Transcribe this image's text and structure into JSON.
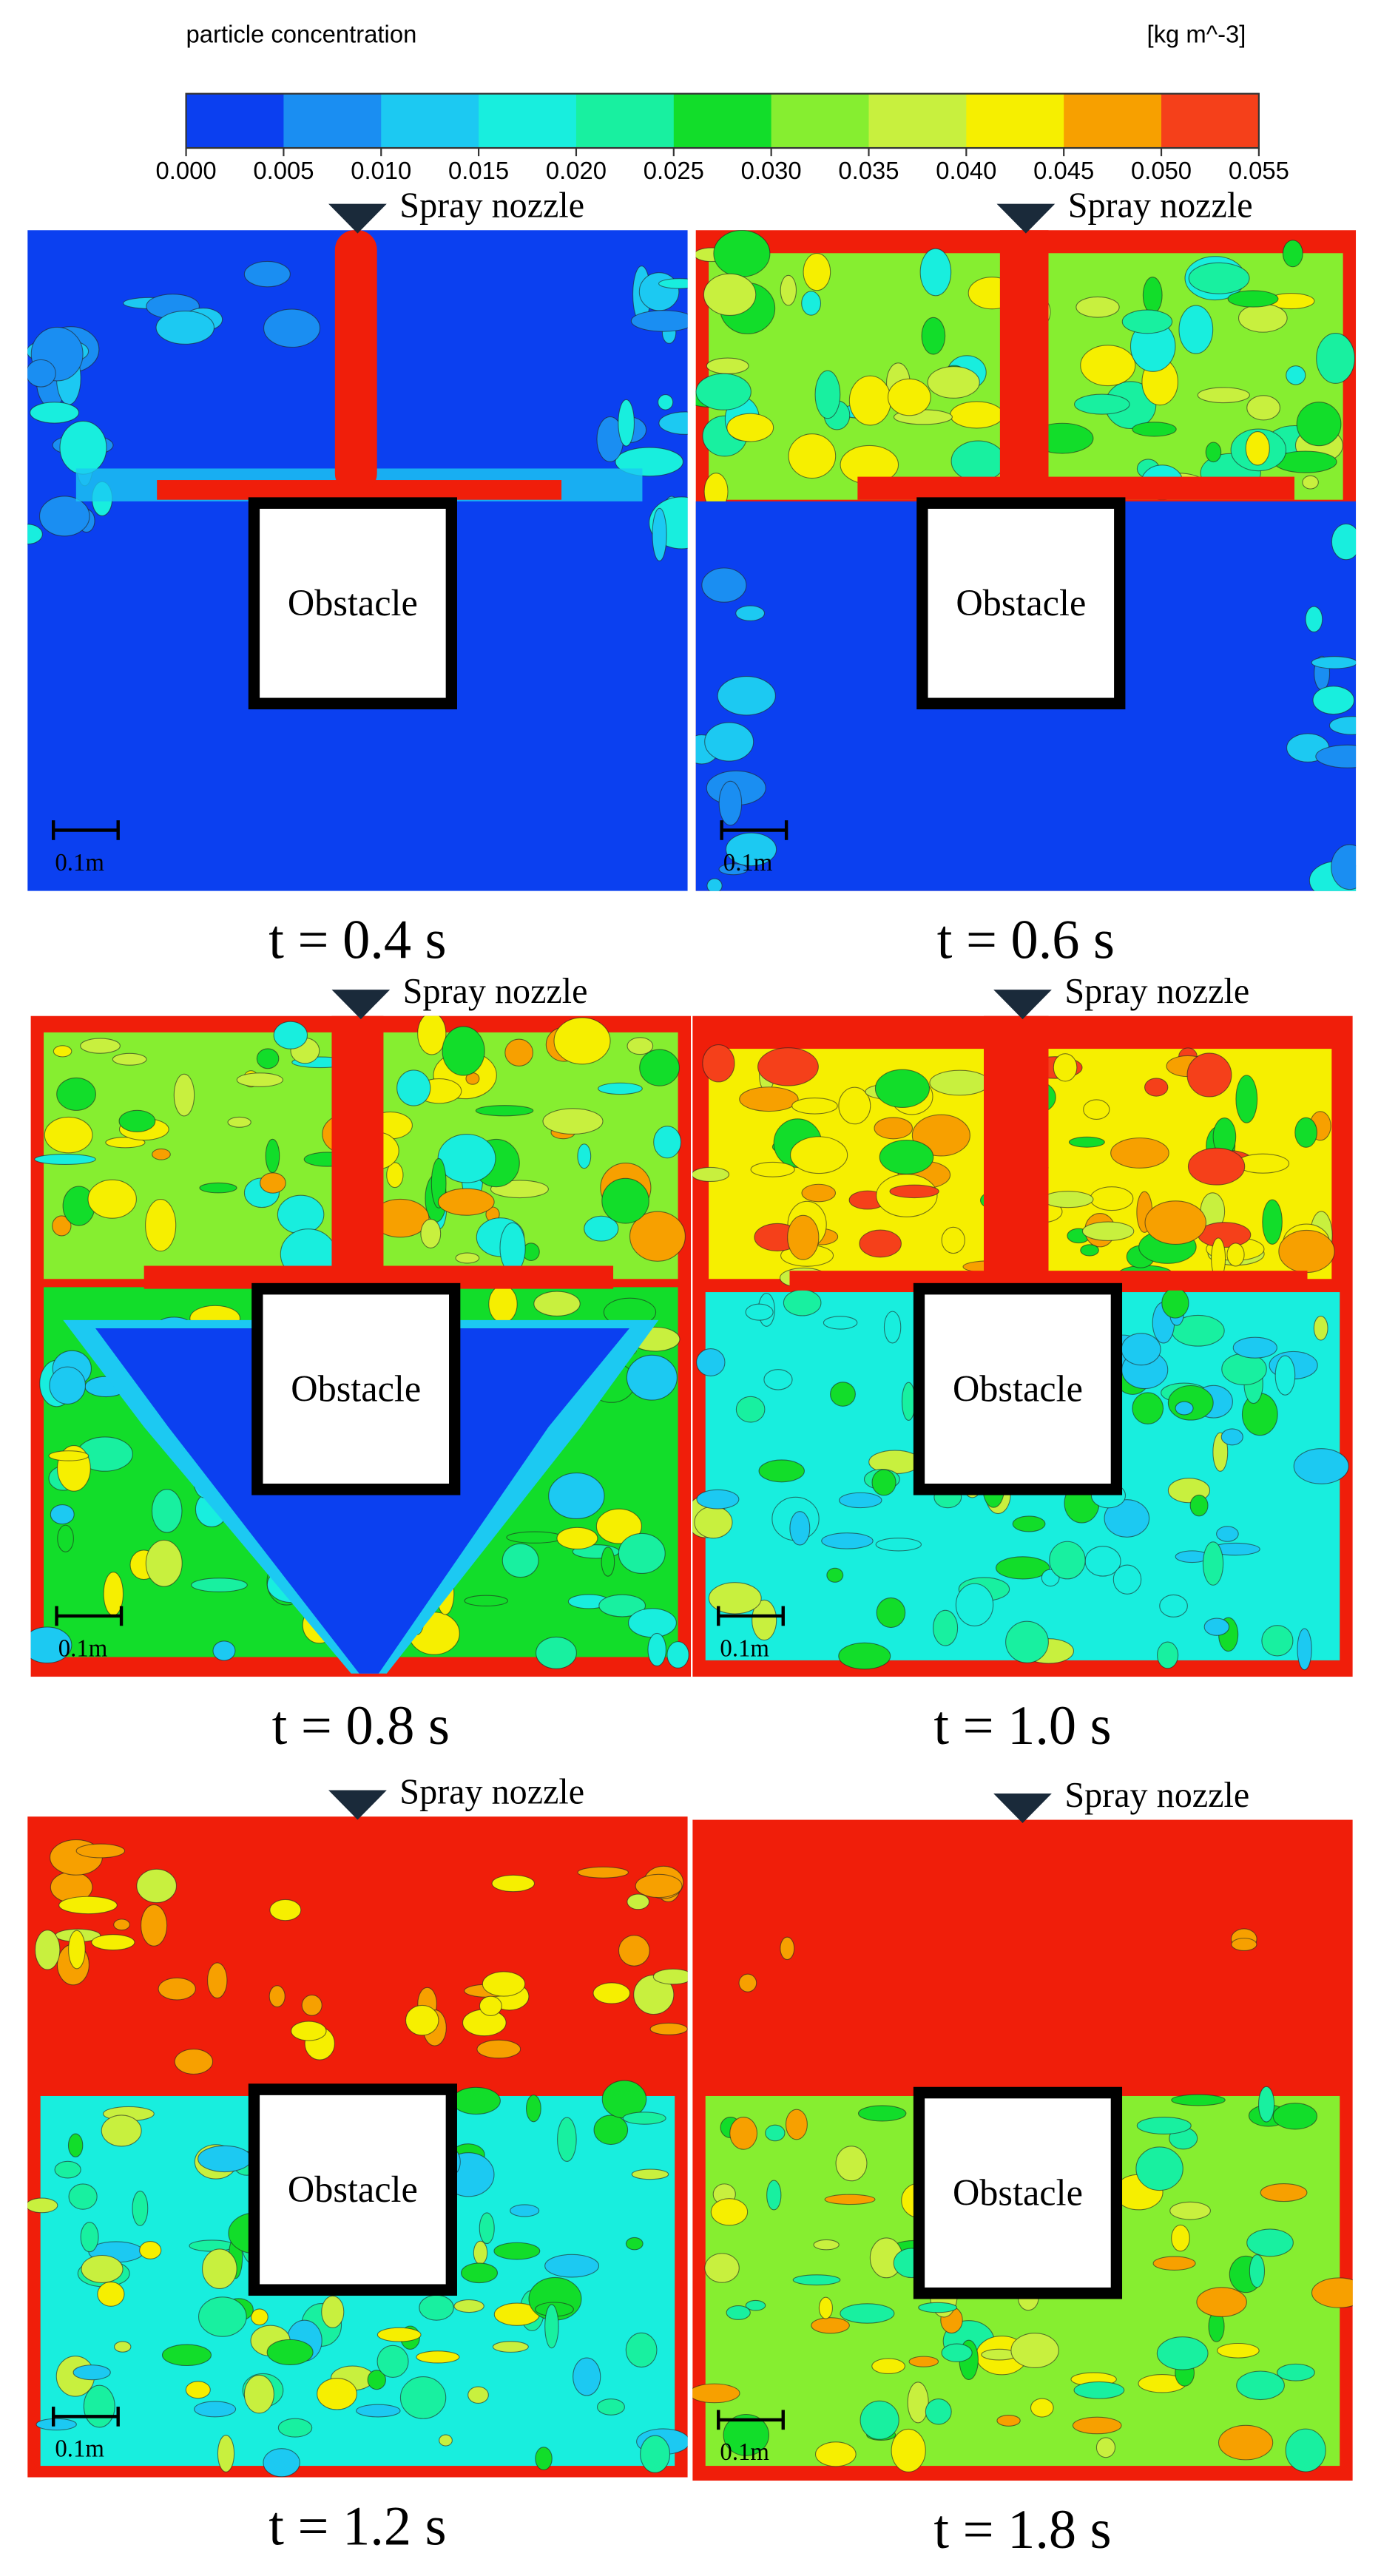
{
  "colorbar": {
    "title": "particle concentration",
    "unit": "[kg m^-3]",
    "ticks": [
      "0.000",
      "0.005",
      "0.010",
      "0.015",
      "0.020",
      "0.025",
      "0.030",
      "0.035",
      "0.040",
      "0.045",
      "0.050",
      "0.055"
    ],
    "colors": [
      "#0b3ff0",
      "#1a8ef2",
      "#1cc9f2",
      "#18eede",
      "#18f0a0",
      "#12dd2a",
      "#86ee30",
      "#c8f03e",
      "#f6ef00",
      "#f7a000",
      "#f5401a"
    ]
  },
  "panels": [
    {
      "nozzle": "Spray nozzle",
      "obstacle": "Obstacle",
      "scale": "0.1m",
      "caption": "t = 0.4 s"
    },
    {
      "nozzle": "Spray nozzle",
      "obstacle": "Obstacle",
      "scale": "0.1m",
      "caption": "t = 0.6 s"
    },
    {
      "nozzle": "Spray nozzle",
      "obstacle": "Obstacle",
      "scale": "0.1m",
      "caption": "t = 0.8 s"
    },
    {
      "nozzle": "Spray nozzle",
      "obstacle": "Obstacle",
      "scale": "0.1m",
      "caption": "t = 1.0 s"
    },
    {
      "nozzle": "Spray nozzle",
      "obstacle": "Obstacle",
      "scale": "0.1m",
      "caption": "t = 1.2 s"
    },
    {
      "nozzle": "Spray nozzle",
      "obstacle": "Obstacle",
      "scale": "0.1m",
      "caption": "t = 1.8 s"
    }
  ]
}
